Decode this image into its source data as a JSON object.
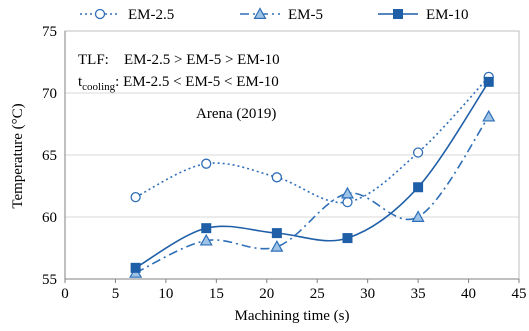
{
  "chart_data": {
    "type": "line",
    "xlabel": "Machining time (s)",
    "ylabel": "Temperature (°C)",
    "xlim": [
      0,
      45
    ],
    "ylim": [
      55,
      75
    ],
    "xticks": [
      "0",
      "5",
      "10",
      "15",
      "20",
      "25",
      "30",
      "35",
      "40",
      "45"
    ],
    "yticks": [
      "55",
      "60",
      "65",
      "70",
      "75"
    ],
    "grid": "horizontal",
    "legend_position": "top",
    "series": [
      {
        "name": "EM-2.5",
        "color": "#2f6fb7",
        "line_style": "dotted",
        "marker": "open-circle",
        "x": [
          7,
          14,
          21,
          28,
          35,
          42
        ],
        "y": [
          61.6,
          64.3,
          63.2,
          61.2,
          65.2,
          71.3
        ]
      },
      {
        "name": "EM-5",
        "color": "#2f6fb7",
        "line_style": "dash-dot",
        "marker": "filled-triangle",
        "x": [
          7,
          14,
          21,
          28,
          35,
          42
        ],
        "y": [
          55.5,
          58.1,
          57.6,
          61.9,
          60.0,
          68.1
        ]
      },
      {
        "name": "EM-10",
        "color": "#1f5fa8",
        "line_style": "solid",
        "marker": "filled-square",
        "x": [
          7,
          14,
          21,
          28,
          35,
          42
        ],
        "y": [
          55.9,
          59.1,
          58.7,
          58.3,
          62.4,
          70.9
        ]
      }
    ],
    "annotations": {
      "tlf_label": "TLF:",
      "tlf_text": "EM-2.5 > EM-5 > EM-10",
      "tcool_main": "t",
      "tcool_sub": "cooling",
      "tcool_text": ": EM-2.5 < EM-5 < EM-10",
      "source": "Arena (2019)"
    }
  }
}
